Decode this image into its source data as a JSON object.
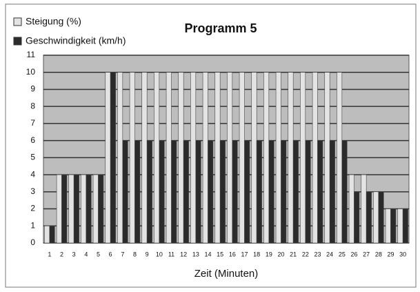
{
  "chart_data": {
    "type": "bar",
    "title": "Programm 5",
    "x_label": "Zeit (Minuten)",
    "categories": [
      "1",
      "2",
      "3",
      "4",
      "5",
      "6",
      "7",
      "8",
      "9",
      "10",
      "11",
      "12",
      "13",
      "14",
      "15",
      "16",
      "17",
      "18",
      "19",
      "20",
      "21",
      "22",
      "23",
      "24",
      "25",
      "26",
      "27",
      "28",
      "29",
      "30"
    ],
    "series": [
      {
        "name": "Steigung (%)",
        "color": "#e3e3e3",
        "values": [
          1,
          4,
          4,
          4,
          4,
          10,
          10,
          10,
          10,
          10,
          10,
          10,
          10,
          10,
          10,
          10,
          10,
          10,
          10,
          10,
          10,
          10,
          10,
          10,
          10,
          4,
          4,
          3,
          2,
          2
        ]
      },
      {
        "name": "Geschwindigkeit (km/h)",
        "color": "#2b2b2b",
        "values": [
          1,
          4,
          4,
          4,
          4,
          10,
          6,
          6,
          6,
          6,
          6,
          6,
          6,
          6,
          6,
          6,
          6,
          6,
          6,
          6,
          6,
          6,
          6,
          6,
          6,
          3,
          3,
          3,
          2,
          2
        ]
      }
    ],
    "ylim": [
      0,
      11
    ],
    "yticks": [
      0,
      1,
      2,
      3,
      4,
      5,
      6,
      7,
      8,
      9,
      10,
      11
    ],
    "grid": true
  }
}
